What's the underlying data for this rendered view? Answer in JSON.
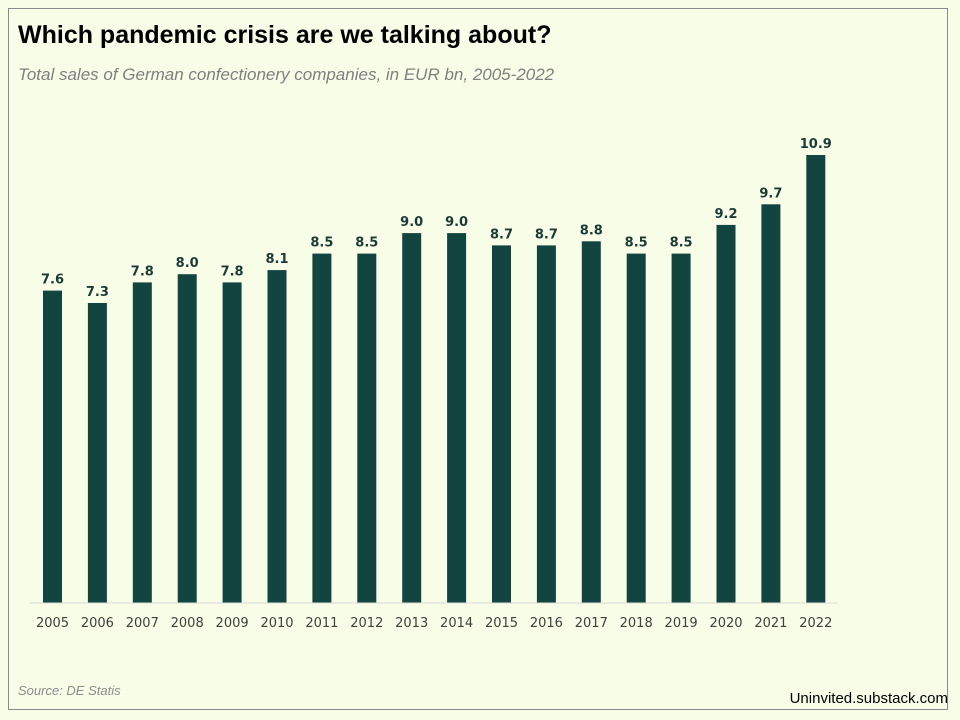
{
  "title": "Which pandemic crisis are we talking about?",
  "subtitle": "Total sales of German confectionery companies, in EUR bn, 2005-2022",
  "source": "Source: DE Statis",
  "credit": "Uninvited.substack.com",
  "colors": {
    "background": "#f8fde8",
    "bar": "#124540",
    "baseline": "#d9d9d9"
  },
  "chart_data": {
    "type": "bar",
    "categories": [
      "2005",
      "2006",
      "2007",
      "2008",
      "2009",
      "2010",
      "2011",
      "2012",
      "2013",
      "2014",
      "2015",
      "2016",
      "2017",
      "2018",
      "2019",
      "2020",
      "2021",
      "2022"
    ],
    "values": [
      7.6,
      7.3,
      7.8,
      8.0,
      7.8,
      8.1,
      8.5,
      8.5,
      9.0,
      9.0,
      8.7,
      8.7,
      8.8,
      8.5,
      8.5,
      9.2,
      9.7,
      10.9
    ],
    "value_labels": [
      "7.6",
      "7.3",
      "7.8",
      "8.0",
      "7.8",
      "8.1",
      "8.5",
      "8.5",
      "9.0",
      "9.0",
      "8.7",
      "8.7",
      "8.8",
      "8.5",
      "8.5",
      "9.2",
      "9.7",
      "10.9"
    ],
    "title": "Which pandemic crisis are we talking about?",
    "subtitle": "Total sales of German confectionery companies, in EUR bn, 2005-2022",
    "xlabel": "",
    "ylabel": "",
    "ylim": [
      0,
      11
    ],
    "grid": false,
    "legend": "none",
    "data_labels": true
  }
}
